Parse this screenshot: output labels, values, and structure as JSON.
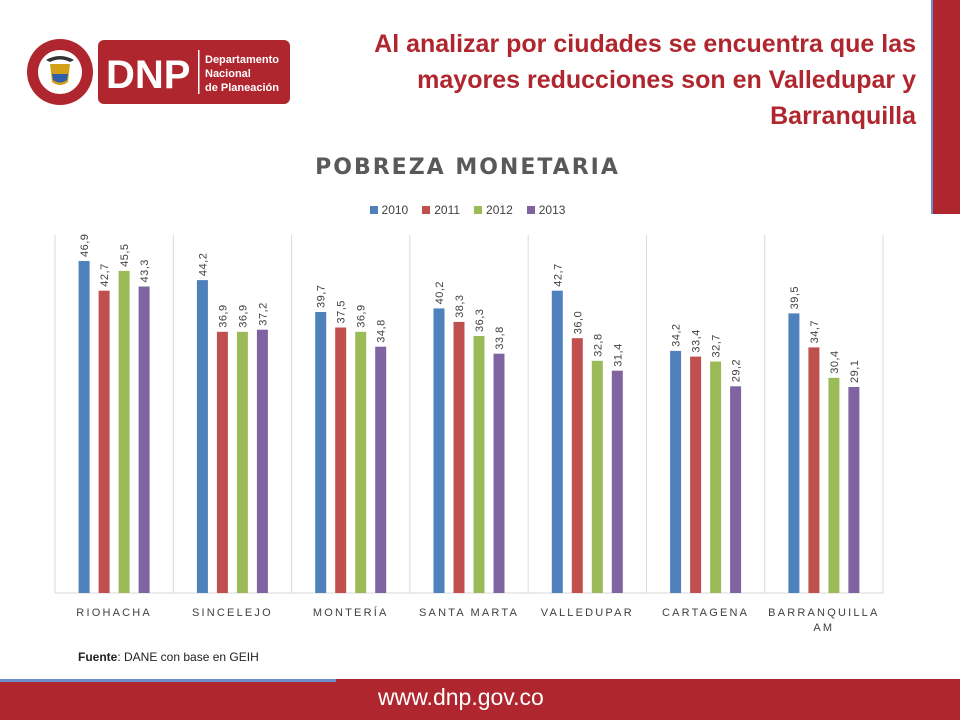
{
  "logo": {
    "acronym": "DNP",
    "line1": "Departamento",
    "line2": "Nacional",
    "line3": "de Planeación",
    "seal_top": "REPÚBLICA",
    "seal_bottom": "DE COLOMBIA",
    "colors": {
      "red": "#b0262e",
      "gold": "#d4a017"
    }
  },
  "headline": "Al analizar por ciudades se encuentra que las mayores reducciones son en Valledupar y Barranquilla",
  "source": {
    "label": "Fuente",
    "text": ": DANE con base en GEIH"
  },
  "footer": {
    "url": "www.dnp.gov.co",
    "color": "#b0262e",
    "accent": "#6b8fc8"
  },
  "chart_data": {
    "type": "bar",
    "title": "POBREZA MONETARIA",
    "legend_position": "top",
    "grid": false,
    "ylim": [
      0,
      50
    ],
    "categories": [
      "RIOHACHA",
      "SINCELEJO",
      "MONTERÍA",
      "SANTA MARTA",
      "VALLEDUPAR",
      "CARTAGENA",
      "BARRANQUILLA AM"
    ],
    "series": [
      {
        "name": "2010",
        "color": "#4f81bd",
        "values": [
          46.9,
          44.2,
          39.7,
          40.2,
          42.7,
          34.2,
          39.5
        ]
      },
      {
        "name": "2011",
        "color": "#c0504d",
        "values": [
          42.7,
          36.9,
          37.5,
          38.3,
          36.0,
          33.4,
          34.7
        ]
      },
      {
        "name": "2012",
        "color": "#9bbb59",
        "values": [
          45.5,
          36.9,
          36.9,
          36.3,
          32.8,
          32.7,
          30.4
        ]
      },
      {
        "name": "2013",
        "color": "#8064a2",
        "values": [
          43.3,
          37.2,
          34.8,
          33.8,
          31.4,
          29.2,
          29.1
        ]
      }
    ],
    "data_labels": [
      [
        "46,9",
        "44,2",
        "39,7",
        "40,2",
        "42,7",
        "34,2",
        "39,5"
      ],
      [
        "42,7",
        "36,9",
        "37,5",
        "38,3",
        "36,0",
        "33,4",
        "34,7"
      ],
      [
        "45,5",
        "36,9",
        "36,9",
        "36,3",
        "32,8",
        "32,7",
        "30,4"
      ],
      [
        "43,3",
        "37,2",
        "34,8",
        "33,8",
        "31,4",
        "29,2",
        "29,1"
      ]
    ]
  }
}
